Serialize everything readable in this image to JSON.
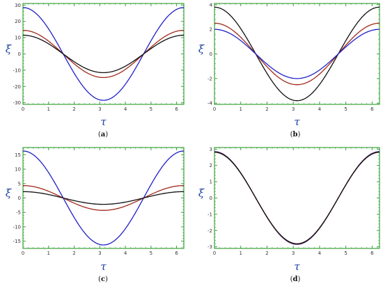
{
  "colors": {
    "frame": "#3aa23a",
    "blue": "#2020c8",
    "red": "#a0281a",
    "black": "#111111",
    "axis_label": "#1a3fa3"
  },
  "chart_data": [
    {
      "id": "a",
      "type": "line",
      "panel_label": "(a)",
      "xlabel": "τ",
      "ylabel": "ξ",
      "xlim": [
        0,
        6.283
      ],
      "ylim": [
        -31,
        31
      ],
      "xticks": [
        0,
        1,
        2,
        3,
        4,
        5,
        6
      ],
      "yticks": [
        -30,
        -20,
        -10,
        0,
        10,
        20,
        30
      ],
      "x_range": [
        0,
        6.283
      ],
      "series": [
        {
          "color": "blue",
          "function": "cos",
          "amplitude": 28.5
        },
        {
          "color": "red",
          "function": "cos",
          "amplitude": 14.5
        },
        {
          "color": "black",
          "function": "cos",
          "amplitude": 11.5
        }
      ]
    },
    {
      "id": "b",
      "type": "line",
      "panel_label": "(b)",
      "xlabel": "τ",
      "ylabel": "ξ",
      "xlim": [
        0,
        6.283
      ],
      "ylim": [
        -4.1,
        4.1
      ],
      "xticks": [
        0,
        1,
        2,
        3,
        4,
        5,
        6
      ],
      "yticks": [
        -4,
        -2,
        0,
        2,
        4
      ],
      "x_range": [
        0,
        6.283
      ],
      "series": [
        {
          "color": "black",
          "function": "cos",
          "amplitude": 3.8
        },
        {
          "color": "red",
          "function": "cos",
          "amplitude": 2.5
        },
        {
          "color": "blue",
          "function": "cos",
          "amplitude": 2.0
        }
      ]
    },
    {
      "id": "c",
      "type": "line",
      "panel_label": "(c)",
      "xlabel": "τ",
      "ylabel": "ξ",
      "xlim": [
        0,
        6.283
      ],
      "ylim": [
        -17.5,
        17.5
      ],
      "xticks": [
        0,
        1,
        2,
        3,
        4,
        5,
        6
      ],
      "yticks": [
        -15,
        -10,
        -5,
        0,
        5,
        10,
        15
      ],
      "x_range": [
        0,
        6.283
      ],
      "series": [
        {
          "color": "blue",
          "function": "cos",
          "amplitude": 16.3
        },
        {
          "color": "red",
          "function": "cos",
          "amplitude": 4.3
        },
        {
          "color": "black",
          "function": "cos",
          "amplitude": 2.2
        }
      ]
    },
    {
      "id": "d",
      "type": "line",
      "panel_label": "(d)",
      "xlabel": "τ",
      "ylabel": "ξ",
      "xlim": [
        0,
        6.283
      ],
      "ylim": [
        -3.1,
        3.1
      ],
      "xticks": [
        0,
        1,
        2,
        3,
        4,
        5,
        6
      ],
      "yticks": [
        -3,
        -2,
        -1,
        0,
        1,
        2,
        3
      ],
      "x_range": [
        0,
        6.283
      ],
      "series": [
        {
          "color": "blue",
          "function": "cos",
          "amplitude": 2.85
        },
        {
          "color": "red",
          "function": "cos",
          "amplitude": 2.83
        },
        {
          "color": "black",
          "function": "cos",
          "amplitude": 2.81
        }
      ]
    }
  ]
}
